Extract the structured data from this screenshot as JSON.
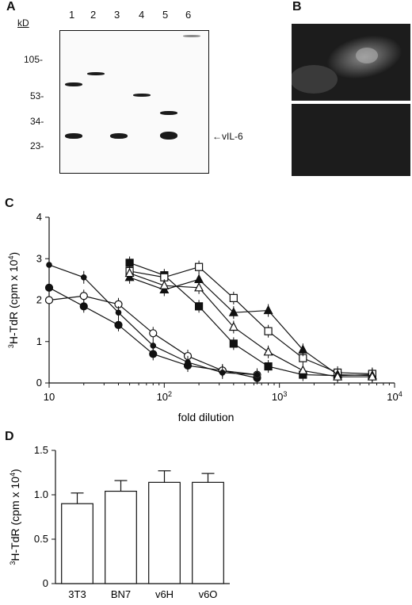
{
  "panels": {
    "a": {
      "letter": "A",
      "kd_label": "kD",
      "lanes": [
        "1",
        "2",
        "3",
        "4",
        "5",
        "6"
      ],
      "markers": [
        "105-",
        "53-",
        "34-",
        "23-"
      ],
      "vil6_label": "vIL-6"
    },
    "b": {
      "letter": "B"
    },
    "c": {
      "letter": "C"
    },
    "d": {
      "letter": "D"
    }
  },
  "chart_data": [
    {
      "panel": "C",
      "type": "line",
      "xlabel": "fold dilution",
      "ylabel": "3H-TdR (cpm x 10^4)",
      "x_scale": "log",
      "xlim": [
        10,
        10000
      ],
      "ylim": [
        0,
        4
      ],
      "x_ticks": [
        "10",
        "10^2",
        "10^3",
        "10^4"
      ],
      "y_ticks": [
        "0",
        "1",
        "2",
        "3",
        "4"
      ],
      "series": [
        {
          "marker": "filled-circle-large",
          "x": [
            10,
            20,
            40,
            80,
            160,
            320,
            640
          ],
          "y": [
            2.3,
            1.85,
            1.4,
            0.7,
            0.42,
            0.3,
            0.12
          ]
        },
        {
          "marker": "open-circle",
          "x": [
            10,
            20,
            40,
            80,
            160,
            320,
            640
          ],
          "y": [
            2.0,
            2.1,
            1.9,
            1.2,
            0.65,
            0.3,
            0.2
          ]
        },
        {
          "marker": "filled-circle-small",
          "x": [
            10,
            20,
            40,
            80,
            160,
            320,
            640
          ],
          "y": [
            2.85,
            2.55,
            1.7,
            0.9,
            0.5,
            0.25,
            0.2
          ]
        },
        {
          "marker": "filled-square",
          "x": [
            50,
            100,
            200,
            400,
            800,
            1600,
            3200,
            6400
          ],
          "y": [
            2.9,
            2.6,
            1.85,
            0.95,
            0.4,
            0.2,
            0.18,
            0.2
          ]
        },
        {
          "marker": "open-square",
          "x": [
            50,
            100,
            200,
            400,
            800,
            1600,
            3200,
            6400
          ],
          "y": [
            2.7,
            2.55,
            2.8,
            2.05,
            1.25,
            0.6,
            0.25,
            0.22
          ]
        },
        {
          "marker": "filled-triangle",
          "x": [
            50,
            100,
            200,
            400,
            800,
            1600,
            3200,
            6400
          ],
          "y": [
            2.55,
            2.25,
            2.5,
            1.7,
            1.75,
            0.8,
            0.2,
            0.18
          ]
        },
        {
          "marker": "open-triangle",
          "x": [
            50,
            100,
            200,
            400,
            800,
            1600,
            3200,
            6400
          ],
          "y": [
            2.65,
            2.35,
            2.3,
            1.35,
            0.75,
            0.3,
            0.15,
            0.15
          ]
        }
      ]
    },
    {
      "panel": "D",
      "type": "bar",
      "ylabel": "3H-TdR (cpm x 10^4)",
      "categories": [
        "3T3",
        "BN7",
        "v6H",
        "v6O"
      ],
      "values": [
        0.9,
        1.04,
        1.14,
        1.14
      ],
      "errors": [
        0.12,
        0.12,
        0.13,
        0.1
      ],
      "ylim": [
        0,
        1.5
      ],
      "y_ticks": [
        "0",
        "0.5",
        "1.0",
        "1.5"
      ]
    }
  ]
}
